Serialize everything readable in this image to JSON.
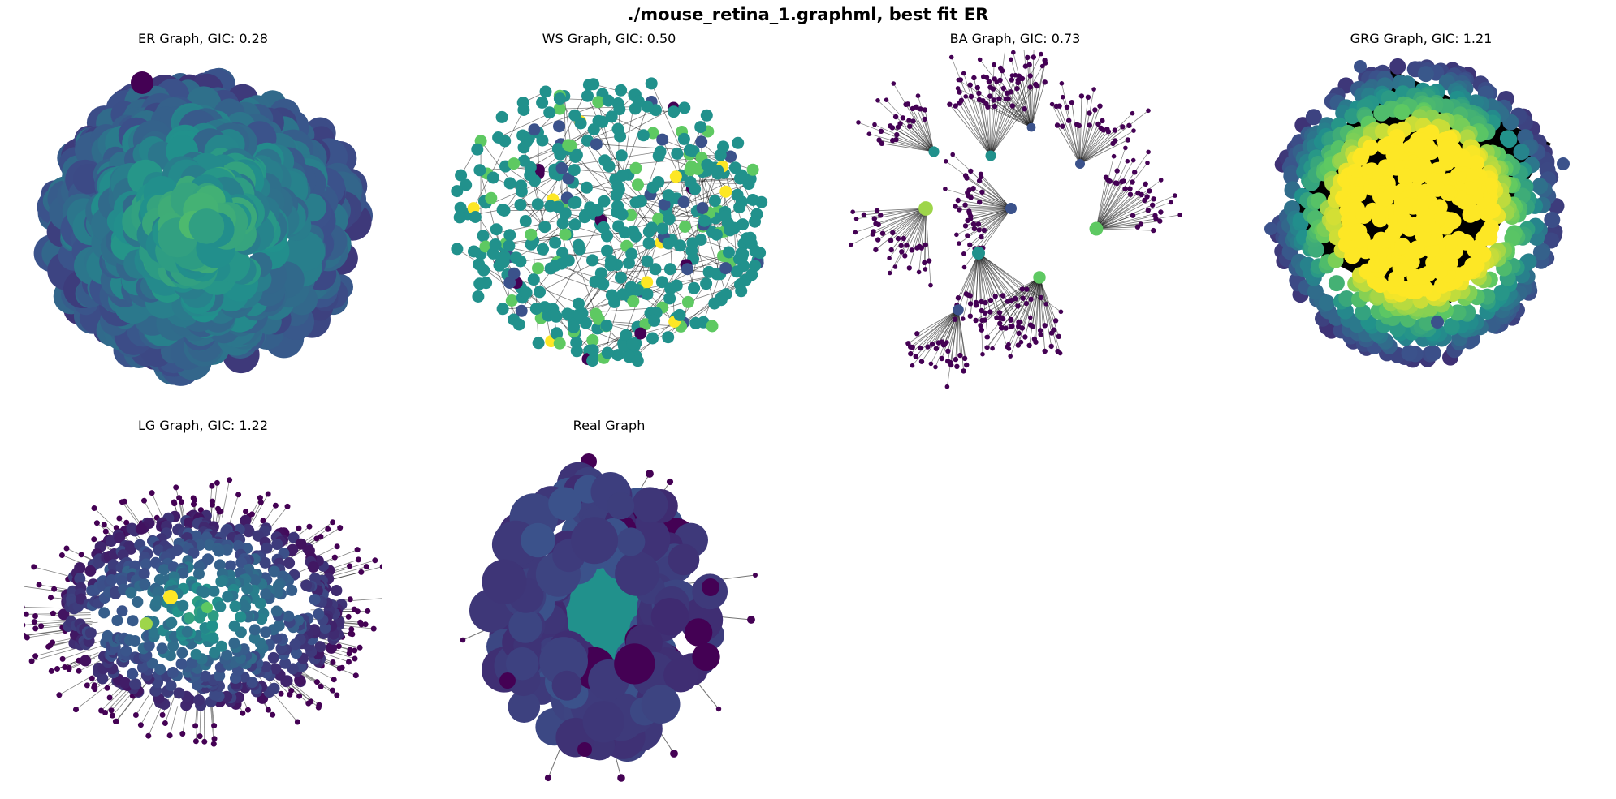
{
  "figure": {
    "title": "./mouse_retina_1.graphml, best fit ER"
  },
  "panels": [
    {
      "id": "er",
      "title": "ER Graph, GIC: 0.28"
    },
    {
      "id": "ws",
      "title": "WS Graph, GIC: 0.50"
    },
    {
      "id": "ba",
      "title": "BA Graph, GIC: 0.73"
    },
    {
      "id": "grg",
      "title": "GRG Graph, GIC: 1.21"
    },
    {
      "id": "lg",
      "title": "LG Graph, GIC: 1.22"
    },
    {
      "id": "real",
      "title": "Real Graph"
    }
  ],
  "colormap": [
    "#440154",
    "#3b528b",
    "#21918c",
    "#5ec962",
    "#fde725"
  ],
  "edge_color": "#000000"
}
